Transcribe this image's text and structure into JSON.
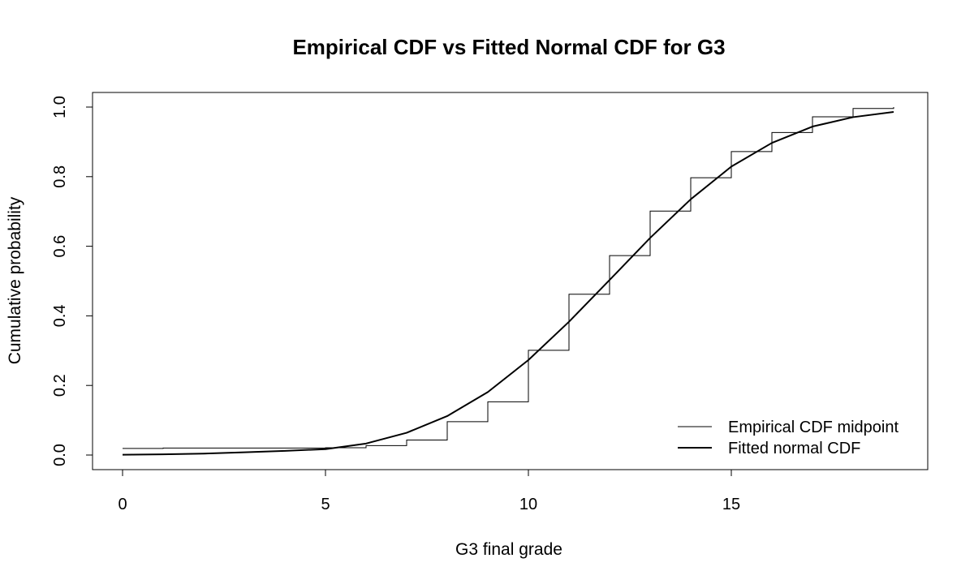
{
  "chart_data": {
    "type": "line",
    "title": "Empirical CDF vs Fitted Normal CDF for G3",
    "xlabel": "G3 final grade",
    "ylabel": "Cumulative probability",
    "xlim": [
      0,
      19
    ],
    "ylim": [
      0,
      1
    ],
    "x_ticks": [
      0,
      5,
      10,
      15
    ],
    "y_ticks": [
      0.0,
      0.2,
      0.4,
      0.6,
      0.8,
      1.0
    ],
    "y_tick_labels": [
      "0.0",
      "0.2",
      "0.4",
      "0.6",
      "0.8",
      "1.0"
    ],
    "grid": false,
    "legend_position": "bottom-right",
    "series": [
      {
        "name": "Empirical CDF midpoint",
        "style": "step",
        "color": "#000000",
        "x": [
          0,
          1,
          2,
          3,
          4,
          5,
          6,
          7,
          8,
          9,
          10,
          11,
          12,
          13,
          14,
          15,
          16,
          17,
          18,
          19
        ],
        "y": [
          0.019,
          0.02,
          0.02,
          0.02,
          0.02,
          0.021,
          0.027,
          0.043,
          0.096,
          0.153,
          0.301,
          0.462,
          0.573,
          0.701,
          0.797,
          0.872,
          0.927,
          0.972,
          0.996,
          1.0
        ]
      },
      {
        "name": "Fitted normal CDF",
        "style": "line",
        "color": "#000000",
        "x": [
          0,
          1,
          2,
          3,
          4,
          5,
          6,
          7,
          8,
          9,
          10,
          11,
          12,
          13,
          14,
          15,
          16,
          17,
          18,
          19
        ],
        "y": [
          0.001,
          0.002,
          0.004,
          0.008,
          0.012,
          0.017,
          0.033,
          0.064,
          0.112,
          0.181,
          0.273,
          0.383,
          0.503,
          0.624,
          0.735,
          0.829,
          0.897,
          0.944,
          0.971,
          0.986
        ]
      }
    ]
  }
}
